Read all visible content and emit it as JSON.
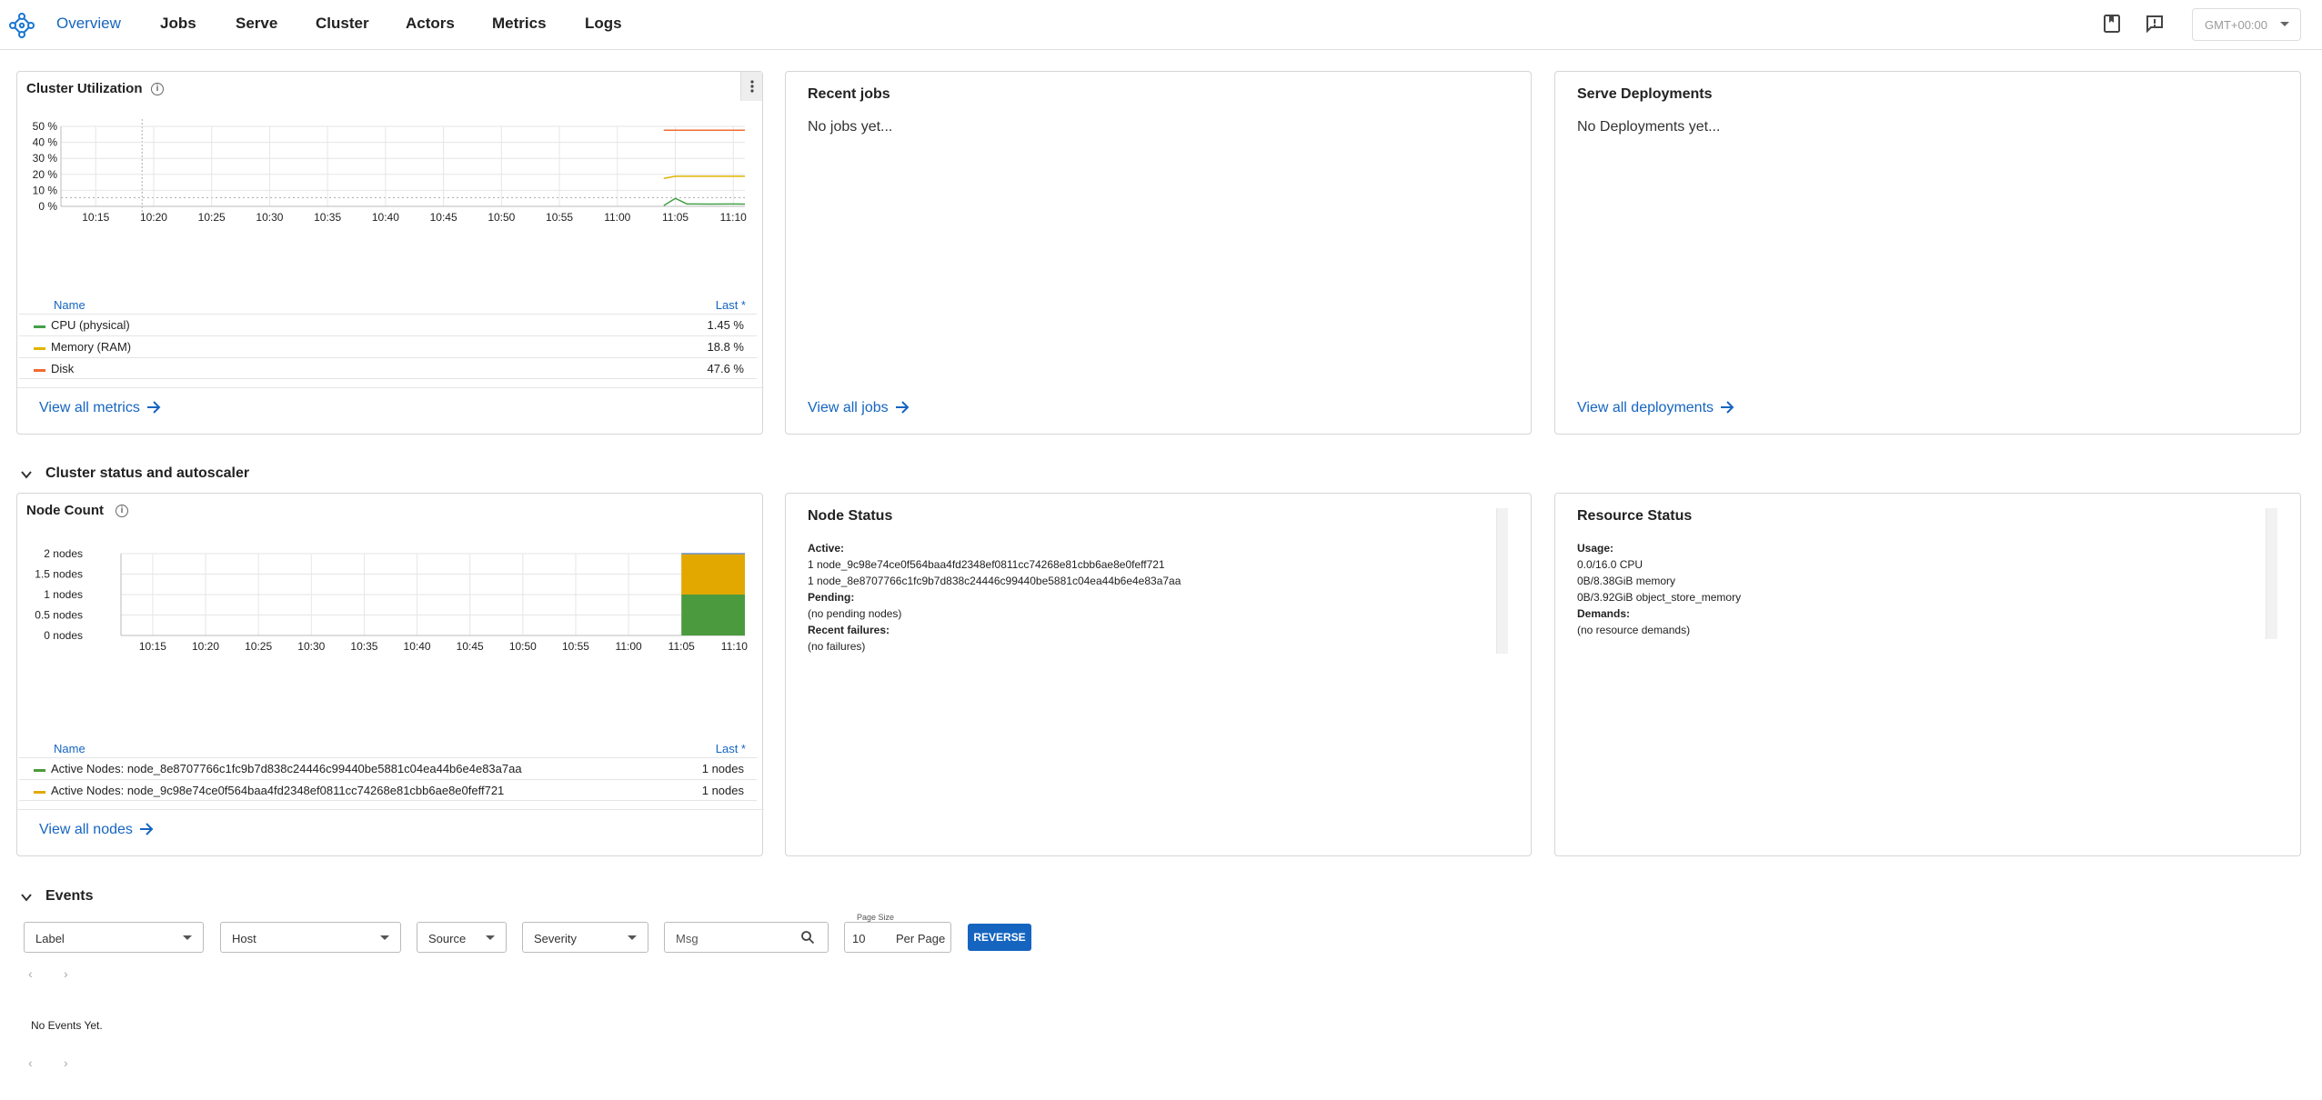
{
  "nav": {
    "tabs": [
      "Overview",
      "Jobs",
      "Serve",
      "Cluster",
      "Actors",
      "Metrics",
      "Logs"
    ],
    "timezone": "GMT+00:00"
  },
  "cluster_utilization": {
    "title": "Cluster Utilization",
    "legend_name": "Name",
    "legend_last": "Last *",
    "series": [
      {
        "name": "CPU (physical)",
        "last": "1.45 %",
        "color": "#43a047"
      },
      {
        "name": "Memory (RAM)",
        "last": "18.8 %",
        "color": "#e0b400"
      },
      {
        "name": "Disk",
        "last": "47.6 %",
        "color": "#f26b2e"
      }
    ],
    "view_link": "View all metrics"
  },
  "recent_jobs": {
    "title": "Recent jobs",
    "empty": "No jobs yet...",
    "view_link": "View all jobs"
  },
  "serve": {
    "title": "Serve Deployments",
    "empty": "No Deployments yet...",
    "view_link": "View all deployments"
  },
  "cluster_section": {
    "title": "Cluster status and autoscaler"
  },
  "node_count": {
    "title": "Node Count",
    "legend_name": "Name",
    "legend_last": "Last *",
    "series": [
      {
        "name": "Active Nodes: node_8e8707766c1fc9b7d838c24446c99440be5881c04ea44b6e4e83a7aa",
        "last": "1 nodes",
        "color": "#4c9a3e"
      },
      {
        "name": "Active Nodes: node_9c98e74ce0f564baa4fd2348ef0811cc74268e81cbb6ae8e0feff721",
        "last": "1 nodes",
        "color": "#e2a800"
      }
    ],
    "view_link": "View all nodes"
  },
  "node_status": {
    "title": "Node Status",
    "active_label": "Active:",
    "active": [
      "1 node_9c98e74ce0f564baa4fd2348ef0811cc74268e81cbb6ae8e0feff721",
      "1 node_8e8707766c1fc9b7d838c24446c99440be5881c04ea44b6e4e83a7aa"
    ],
    "pending_label": "Pending:",
    "pending": "(no pending nodes)",
    "failures_label": "Recent failures:",
    "failures": "(no failures)"
  },
  "resource_status": {
    "title": "Resource Status",
    "usage_label": "Usage:",
    "usage": [
      "0.0/16.0 CPU",
      "0B/8.38GiB memory",
      "0B/3.92GiB object_store_memory"
    ],
    "demands_label": "Demands:",
    "demands": "(no resource demands)"
  },
  "events": {
    "title": "Events",
    "filters": {
      "label": "Label",
      "host": "Host",
      "source": "Source",
      "severity": "Severity",
      "msg_placeholder": "Msg"
    },
    "page_size_label": "Page Size",
    "page_size": "10",
    "per_page": "Per Page",
    "reverse": "REVERSE",
    "empty": "No Events Yet."
  },
  "chart_data": [
    {
      "type": "line",
      "title": "Cluster Utilization",
      "x_ticks": [
        "10:15",
        "10:20",
        "10:25",
        "10:30",
        "10:35",
        "10:40",
        "10:45",
        "10:50",
        "10:55",
        "11:00",
        "11:05",
        "11:10"
      ],
      "y_ticks": [
        "0 %",
        "10 %",
        "20 %",
        "30 %",
        "40 %",
        "50 %"
      ],
      "ylim": [
        0,
        50
      ],
      "series": [
        {
          "name": "CPU (physical)",
          "x": [
            "11:04",
            "11:05",
            "11:06",
            "11:08",
            "11:10",
            "11:11"
          ],
          "y": [
            0.5,
            5,
            1.5,
            1.4,
            1.5,
            1.45
          ]
        },
        {
          "name": "Memory (RAM)",
          "x": [
            "11:04",
            "11:05",
            "11:11"
          ],
          "y": [
            17.5,
            18.8,
            18.8
          ]
        },
        {
          "name": "Disk",
          "x": [
            "11:04",
            "11:11"
          ],
          "y": [
            47.6,
            47.6
          ]
        }
      ],
      "grid": true,
      "legend": "bottom"
    },
    {
      "type": "area",
      "title": "Node Count",
      "x_ticks": [
        "10:15",
        "10:20",
        "10:25",
        "10:30",
        "10:35",
        "10:40",
        "10:45",
        "10:50",
        "10:55",
        "11:00",
        "11:05",
        "11:10"
      ],
      "y_ticks": [
        "0 nodes",
        "0.5 nodes",
        "1 nodes",
        "1.5 nodes",
        "2 nodes"
      ],
      "ylim": [
        0,
        2
      ],
      "stacked": true,
      "series": [
        {
          "name": "Active Nodes: node_8e8707766c1fc9b7d838c24446c99440be5881c04ea44b6e4e83a7aa",
          "x": [
            "11:05",
            "11:11"
          ],
          "y": [
            1,
            1
          ]
        },
        {
          "name": "Active Nodes: node_9c98e74ce0f564baa4fd2348ef0811cc74268e81cbb6ae8e0feff721",
          "x": [
            "11:05",
            "11:11"
          ],
          "y": [
            1,
            1
          ]
        }
      ],
      "grid": true,
      "legend": "bottom"
    }
  ]
}
